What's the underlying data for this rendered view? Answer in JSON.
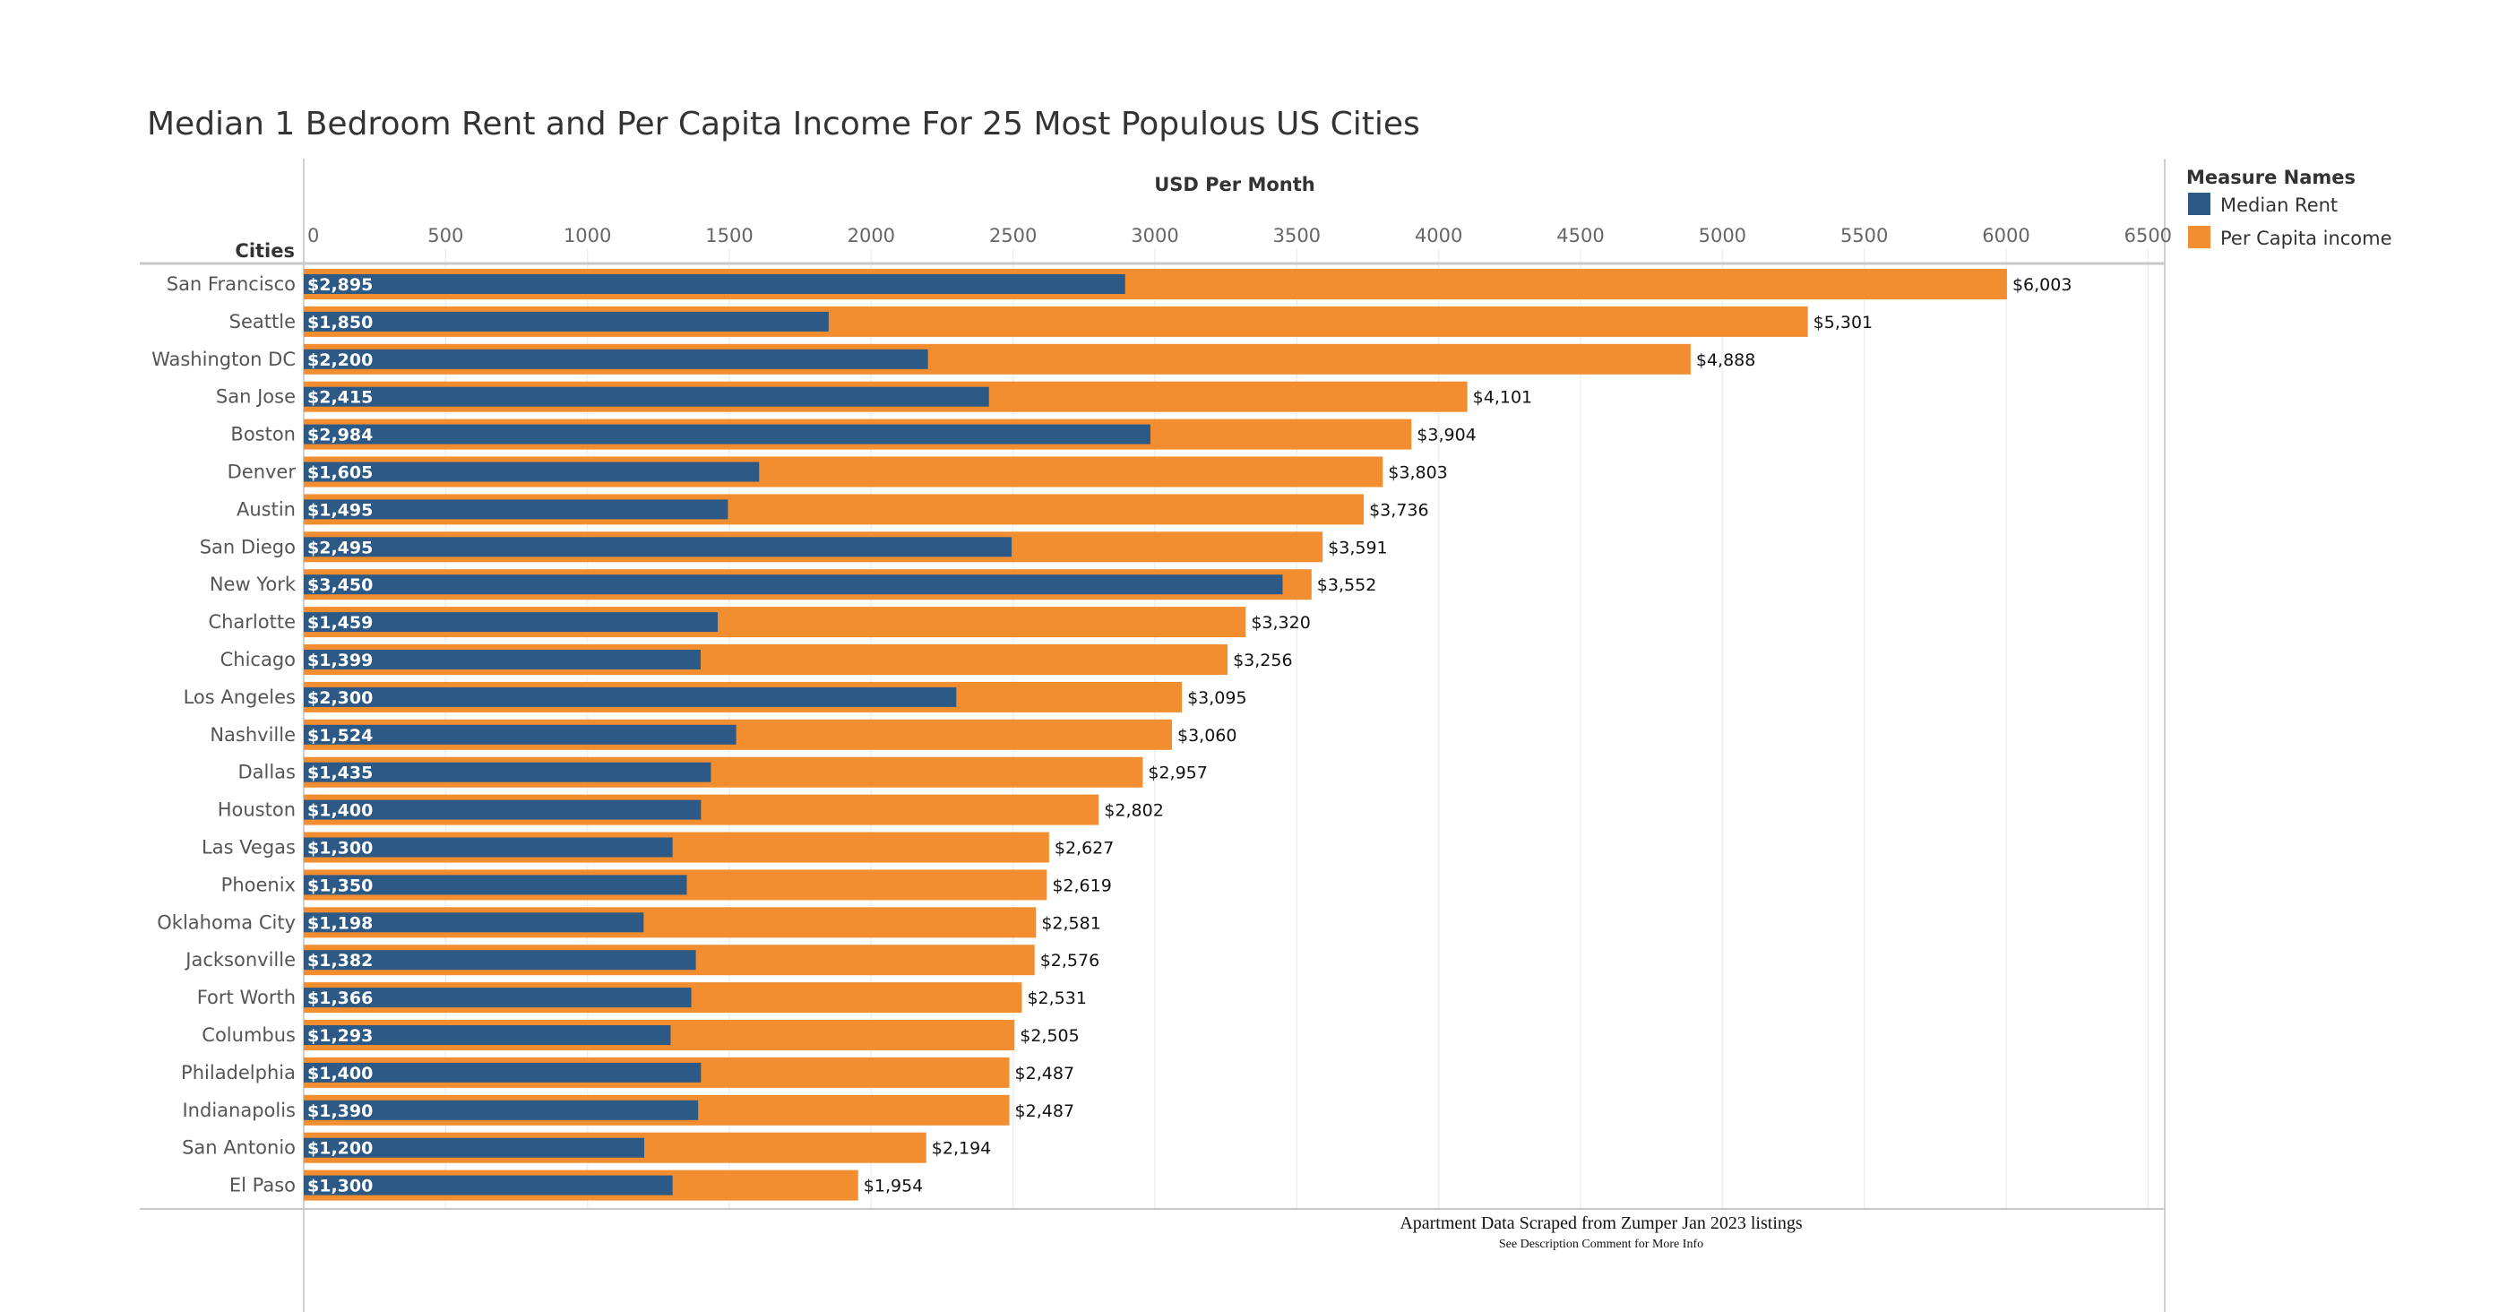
{
  "chart_data": {
    "type": "bar",
    "orientation": "horizontal",
    "title": "Median 1 Bedroom Rent and Per Capita Income For 25 Most Populous US Cities",
    "xlabel": "USD Per Month",
    "ylabel": "Cities",
    "xlim": [
      0,
      6500
    ],
    "xticks": [
      0,
      500,
      1000,
      1500,
      2000,
      2500,
      3000,
      3500,
      4000,
      4500,
      5000,
      5500,
      6000,
      6500
    ],
    "grid": true,
    "legend": {
      "title": "Measure Names",
      "placement": "top-right",
      "entries": [
        {
          "name": "Median Rent",
          "color": "#2c5985"
        },
        {
          "name": "Per Capita income",
          "color": "#f28e2f"
        }
      ]
    },
    "categories": [
      "San Francisco",
      "Seattle",
      "Washington DC",
      "San Jose",
      "Boston",
      "Denver",
      "Austin",
      "San Diego",
      "New York",
      "Charlotte",
      "Chicago",
      "Los Angeles",
      "Nashville",
      "Dallas",
      "Houston",
      "Las Vegas",
      "Phoenix",
      "Oklahoma City",
      "Jacksonville",
      "Fort Worth",
      "Columbus",
      "Philadelphia",
      "Indianapolis",
      "San Antonio",
      "El Paso"
    ],
    "series": [
      {
        "name": "Median Rent",
        "color": "#2c5985",
        "values": [
          2895,
          1850,
          2200,
          2415,
          2984,
          1605,
          1495,
          2495,
          3450,
          1459,
          1399,
          2300,
          1524,
          1435,
          1400,
          1300,
          1350,
          1198,
          1382,
          1366,
          1293,
          1400,
          1390,
          1200,
          1300
        ],
        "labels": [
          "$2,895",
          "$1,850",
          "$2,200",
          "$2,415",
          "$2,984",
          "$1,605",
          "$1,495",
          "$2,495",
          "$3,450",
          "$1,459",
          "$1,399",
          "$2,300",
          "$1,524",
          "$1,435",
          "$1,400",
          "$1,300",
          "$1,350",
          "$1,198",
          "$1,382",
          "$1,366",
          "$1,293",
          "$1,400",
          "$1,390",
          "$1,200",
          "$1,300"
        ]
      },
      {
        "name": "Per Capita income",
        "color": "#f28e2f",
        "values": [
          6003,
          5301,
          4888,
          4101,
          3904,
          3803,
          3736,
          3591,
          3552,
          3320,
          3256,
          3095,
          3060,
          2957,
          2802,
          2627,
          2619,
          2581,
          2576,
          2531,
          2505,
          2487,
          2487,
          2194,
          1954
        ],
        "labels": [
          "$6,003",
          "$5,301",
          "$4,888",
          "$4,101",
          "$3,904",
          "$3,803",
          "$3,736",
          "$3,591",
          "$3,552",
          "$3,320",
          "$3,256",
          "$3,095",
          "$3,060",
          "$2,957",
          "$2,802",
          "$2,627",
          "$2,619",
          "$2,581",
          "$2,576",
          "$2,531",
          "$2,505",
          "$2,487",
          "$2,487",
          "$2,194",
          "$1,954"
        ]
      }
    ],
    "annotations": [
      "Apartment Data Scraped from Zumper Jan 2023 listings",
      "See Description Comment for More Info"
    ]
  }
}
